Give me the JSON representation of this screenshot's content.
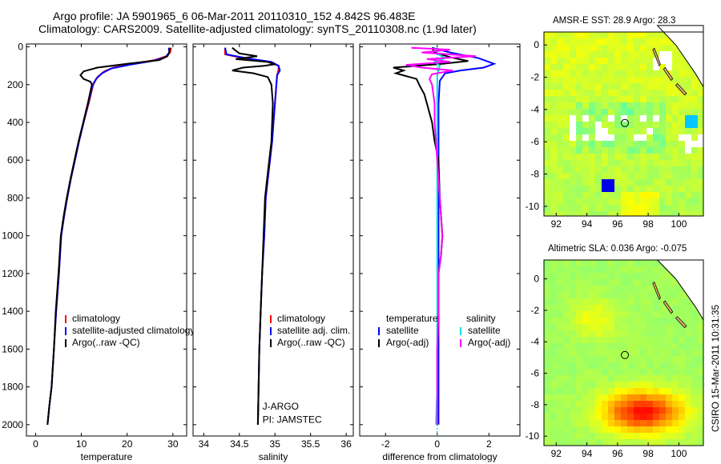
{
  "header": {
    "line1": "Argo profile: JA 5901965_6 06-Mar-2011 20110310_152 4.842S 96.483E",
    "line2": "Climatology: CARS2009. Satellite-adjusted climatology: synTS_20110308.nc (1.9d later)"
  },
  "stamp": "CSIRO 15-Mar-2011 10:31:35",
  "chart_data": [
    {
      "type": "line",
      "id": "temperature",
      "xlabel": "temperature",
      "ylabel": "",
      "xlim": [
        -2,
        33
      ],
      "ylim": [
        2060,
        -15
      ],
      "xticks": [
        0,
        10,
        20,
        30
      ],
      "yticks": [
        0,
        200,
        400,
        600,
        800,
        1000,
        1200,
        1400,
        1600,
        1800,
        2000
      ],
      "legend": {
        "position": "lower-right",
        "items": [
          "climatology",
          "satellite-adjusted climatology",
          "Argo(..raw -QC)"
        ]
      },
      "series": [
        {
          "name": "climatology",
          "color": "#ff0000",
          "points": [
            [
              29.6,
              5
            ],
            [
              29.4,
              30
            ],
            [
              28.5,
              50
            ],
            [
              26,
              70
            ],
            [
              21,
              90
            ],
            [
              17,
              110
            ],
            [
              15,
              130
            ],
            [
              13.5,
              160
            ],
            [
              12.6,
              200
            ],
            [
              11.6,
              300
            ],
            [
              10.5,
              400
            ],
            [
              9.5,
              500
            ],
            [
              8.6,
              600
            ],
            [
              7.7,
              700
            ],
            [
              6.9,
              800
            ],
            [
              6.2,
              900
            ],
            [
              5.6,
              1000
            ],
            [
              5.1,
              1200
            ],
            [
              4.5,
              1400
            ],
            [
              4,
              1600
            ],
            [
              3.5,
              1800
            ],
            [
              3,
              1900
            ],
            [
              2.6,
              2000
            ]
          ]
        },
        {
          "name": "satellite-adjusted climatology",
          "color": "#0000ff",
          "points": [
            [
              29.1,
              5
            ],
            [
              29.2,
              30
            ],
            [
              28.4,
              55
            ],
            [
              25.5,
              75
            ],
            [
              20.5,
              95
            ],
            [
              16.5,
              115
            ],
            [
              14.5,
              140
            ],
            [
              13.2,
              170
            ],
            [
              12.5,
              200
            ],
            [
              11.5,
              300
            ],
            [
              10.5,
              400
            ],
            [
              9.5,
              500
            ],
            [
              8.6,
              600
            ],
            [
              7.7,
              700
            ],
            [
              6.9,
              800
            ],
            [
              6.2,
              900
            ],
            [
              5.6,
              1000
            ],
            [
              5.1,
              1200
            ],
            [
              4.5,
              1400
            ],
            [
              4,
              1600
            ],
            [
              3.5,
              1800
            ],
            [
              3,
              1900
            ],
            [
              2.6,
              2000
            ]
          ]
        },
        {
          "name": "Argo(..raw -QC)",
          "color": "#000000",
          "points": [
            [
              29.3,
              5
            ],
            [
              29.2,
              30
            ],
            [
              28.8,
              50
            ],
            [
              27,
              70
            ],
            [
              20,
              90
            ],
            [
              13.5,
              110
            ],
            [
              10.5,
              130
            ],
            [
              9.8,
              150
            ],
            [
              10.5,
              170
            ],
            [
              12,
              185
            ],
            [
              12.3,
              200
            ],
            [
              11.4,
              300
            ],
            [
              10.4,
              400
            ],
            [
              9.4,
              500
            ],
            [
              8.5,
              600
            ],
            [
              7.6,
              700
            ],
            [
              6.8,
              800
            ],
            [
              6.1,
              900
            ],
            [
              5.5,
              1000
            ],
            [
              5,
              1200
            ],
            [
              4.4,
              1400
            ],
            [
              4,
              1600
            ],
            [
              3.5,
              1800
            ],
            [
              3,
              1900
            ],
            [
              2.6,
              2000
            ]
          ]
        }
      ]
    },
    {
      "type": "line",
      "id": "salinity",
      "xlabel": "salinity",
      "ylabel": "",
      "xlim": [
        33.85,
        36.1
      ],
      "ylim": [
        2060,
        -15
      ],
      "xticks": [
        34,
        34.5,
        35,
        35.5,
        36
      ],
      "xtick_labels": [
        "34",
        "34.5",
        "35",
        "35.5",
        "36"
      ],
      "legend": {
        "position": "center-right",
        "items": [
          "climatology",
          "satellite adj. clim.",
          "Argo(..raw -QC)"
        ]
      },
      "annotations": [
        "J-ARGO",
        "PI: JAMSTEC"
      ],
      "series": [
        {
          "name": "climatology",
          "color": "#ff0000",
          "points": [
            [
              34.3,
              5
            ],
            [
              34.3,
              40
            ],
            [
              34.55,
              60
            ],
            [
              34.9,
              80
            ],
            [
              35.05,
              100
            ],
            [
              35.05,
              120
            ],
            [
              35.03,
              150
            ],
            [
              35.02,
              200
            ],
            [
              35,
              300
            ],
            [
              34.98,
              400
            ],
            [
              34.96,
              500
            ],
            [
              34.93,
              600
            ],
            [
              34.9,
              700
            ],
            [
              34.87,
              800
            ],
            [
              34.85,
              1000
            ],
            [
              34.82,
              1200
            ],
            [
              34.8,
              1400
            ],
            [
              34.78,
              1600
            ],
            [
              34.77,
              1800
            ],
            [
              34.76,
              2000
            ]
          ]
        },
        {
          "name": "satellite adj. clim.",
          "color": "#0000ff",
          "points": [
            [
              34.3,
              5
            ],
            [
              34.32,
              40
            ],
            [
              34.6,
              60
            ],
            [
              34.95,
              80
            ],
            [
              35.05,
              100
            ],
            [
              35.07,
              125
            ],
            [
              35.03,
              150
            ],
            [
              35.02,
              200
            ],
            [
              35,
              300
            ],
            [
              34.98,
              400
            ],
            [
              34.96,
              500
            ],
            [
              34.93,
              600
            ],
            [
              34.9,
              700
            ],
            [
              34.87,
              800
            ],
            [
              34.85,
              1000
            ],
            [
              34.82,
              1200
            ],
            [
              34.8,
              1400
            ],
            [
              34.78,
              1600
            ],
            [
              34.77,
              1800
            ],
            [
              34.76,
              2000
            ]
          ]
        },
        {
          "name": "Argo(..raw -QC)",
          "color": "#000000",
          "points": [
            [
              34.4,
              5
            ],
            [
              34.45,
              20
            ],
            [
              34.5,
              35
            ],
            [
              34.75,
              50
            ],
            [
              34.45,
              65
            ],
            [
              34.9,
              80
            ],
            [
              35,
              92
            ],
            [
              34.85,
              100
            ],
            [
              34.55,
              110
            ],
            [
              34.4,
              125
            ],
            [
              34.7,
              140
            ],
            [
              34.9,
              160
            ],
            [
              34.95,
              200
            ],
            [
              34.97,
              300
            ],
            [
              34.96,
              400
            ],
            [
              34.95,
              500
            ],
            [
              34.92,
              600
            ],
            [
              34.89,
              700
            ],
            [
              34.86,
              800
            ],
            [
              34.84,
              1000
            ],
            [
              34.82,
              1200
            ],
            [
              34.8,
              1400
            ],
            [
              34.78,
              1600
            ],
            [
              34.77,
              1800
            ],
            [
              34.76,
              2000
            ]
          ]
        }
      ]
    },
    {
      "type": "line",
      "id": "difference",
      "xlabel": "difference from climatology",
      "ylabel": "",
      "xlim": [
        -3,
        3.2
      ],
      "ylim": [
        2060,
        -15
      ],
      "xticks": [
        -2,
        0,
        2
      ],
      "legend": {
        "position": "center",
        "headers": [
          "temperature",
          "salinity"
        ],
        "items": [
          "satellite",
          "Argo(-adj)",
          "satellite",
          "Argo(-adj)"
        ]
      },
      "series": [
        {
          "name": "temperature satellite",
          "color": "#0000ff",
          "points": [
            [
              -0.2,
              5
            ],
            [
              0.5,
              30
            ],
            [
              1.6,
              60
            ],
            [
              2.2,
              90
            ],
            [
              1.8,
              110
            ],
            [
              0.9,
              125
            ],
            [
              0.3,
              140
            ],
            [
              0.1,
              180
            ],
            [
              0.05,
              300
            ],
            [
              0.05,
              600
            ],
            [
              0.05,
              1000
            ],
            [
              0.05,
              1400
            ],
            [
              0.05,
              2000
            ]
          ]
        },
        {
          "name": "temperature Argo(-adj)",
          "color": "#000000",
          "points": [
            [
              -0.2,
              5
            ],
            [
              -0.1,
              30
            ],
            [
              0.5,
              55
            ],
            [
              1.2,
              75
            ],
            [
              0.2,
              90
            ],
            [
              -1.7,
              110
            ],
            [
              -1.3,
              125
            ],
            [
              -1.6,
              140
            ],
            [
              -0.8,
              170
            ],
            [
              -0.7,
              200
            ],
            [
              -0.5,
              250
            ],
            [
              -0.4,
              300
            ],
            [
              -0.2,
              400
            ],
            [
              -0.1,
              500
            ],
            [
              0.05,
              600
            ],
            [
              0.1,
              800
            ],
            [
              0.2,
              1000
            ],
            [
              0.15,
              1100
            ],
            [
              0.05,
              1200
            ],
            [
              0.05,
              1400
            ],
            [
              0,
              1600
            ],
            [
              0,
              2000
            ]
          ]
        },
        {
          "name": "salinity satellite",
          "color": "#00dddd",
          "points": [
            [
              -0.1,
              5
            ],
            [
              0.05,
              40
            ],
            [
              0.3,
              60
            ],
            [
              -0.1,
              80
            ],
            [
              0.1,
              100
            ],
            [
              0,
              150
            ],
            [
              0,
              300
            ],
            [
              0,
              600
            ],
            [
              0,
              1000
            ],
            [
              0,
              1400
            ],
            [
              0,
              1800
            ],
            [
              -0.05,
              2000
            ]
          ]
        },
        {
          "name": "salinity Argo(-adj)",
          "color": "#ff00ff",
          "points": [
            [
              -1,
              5
            ],
            [
              0.5,
              15
            ],
            [
              -0.6,
              30
            ],
            [
              1.5,
              50
            ],
            [
              -0.4,
              65
            ],
            [
              0.5,
              80
            ],
            [
              -1.2,
              95
            ],
            [
              -0.6,
              110
            ],
            [
              0.6,
              125
            ],
            [
              -0.2,
              145
            ],
            [
              -0.3,
              170
            ],
            [
              -0.2,
              200
            ],
            [
              -0.1,
              300
            ],
            [
              -0.1,
              400
            ],
            [
              0,
              600
            ],
            [
              0.1,
              800
            ],
            [
              0.2,
              1000
            ],
            [
              0.15,
              1100
            ],
            [
              0.05,
              1200
            ],
            [
              0.05,
              1400
            ],
            [
              0,
              1600
            ],
            [
              0,
              2000
            ]
          ]
        }
      ]
    },
    {
      "type": "heatmap",
      "id": "sst-map",
      "title": "AMSR-E SST: 28.9  Argo: 28.3",
      "xlim": [
        91.2,
        101.6
      ],
      "ylim": [
        -10.6,
        0.8
      ],
      "xticks": [
        92,
        94,
        96,
        98,
        100
      ],
      "yticks": [
        0,
        -2,
        -4,
        -6,
        -8,
        -10
      ],
      "marker": {
        "lon": 96.48,
        "lat": -4.84
      },
      "colorscale": "jet"
    },
    {
      "type": "heatmap",
      "id": "sla-map",
      "title": "Altimetric SLA: 0.036  Argo: -0.075",
      "xlim": [
        91.2,
        101.6
      ],
      "ylim": [
        -10.6,
        1.2
      ],
      "xticks": [
        92,
        94,
        96,
        98,
        100
      ],
      "yticks": [
        0,
        -2,
        -4,
        -6,
        -8,
        -10
      ],
      "marker": {
        "lon": 96.48,
        "lat": -4.84
      },
      "colorscale": "jet"
    }
  ]
}
